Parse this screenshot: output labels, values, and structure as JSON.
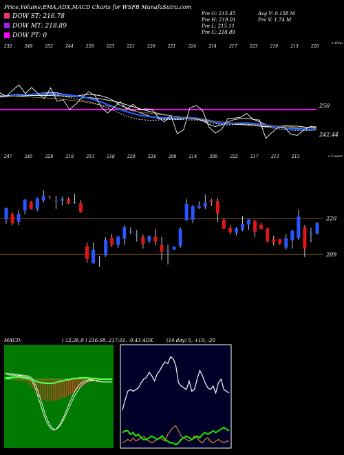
{
  "header": {
    "title": "Price,Volume,EMA,ADX,MACD Charts for WSFB MunafaSutra.com",
    "dow_st": "DOW ST: 216.78",
    "dow_mt": "DOW MT: 218.89",
    "dow_pt": "DOW PT: 0",
    "ohlc": {
      "open": "Pre  O: 215.45",
      "high": "Pre  H: 219.01",
      "low": "Pre  L: 215.11",
      "close": "Pre  C: 218.89"
    },
    "volume": {
      "avg": "Avg V: 0.158  M",
      "pre": "Pre  V: 1.74  M"
    },
    "colors": {
      "dow_st": "#e8327a",
      "dow_mt": "#a020f0",
      "dow_pt": "#ff00ff"
    }
  },
  "chart_data": [
    {
      "type": "line",
      "name": "ema-chart",
      "legend_tag": "< Ema",
      "top_labels": [
        "232",
        "249",
        "252",
        "244",
        "228",
        "223",
        "221",
        "226",
        "221",
        "224",
        "214",
        "217",
        "223",
        "219",
        "213",
        "220"
      ],
      "price_levels": [
        {
          "label": "250",
          "value": 250
        },
        {
          "label": "242.44",
          "value": 242.44
        }
      ],
      "ylim": [
        239,
        261
      ],
      "series": [
        {
          "color": "#ffffff",
          "values": [
            252.3,
            252.4,
            252.5,
            252.6,
            252.7,
            252.9,
            253.1,
            253.3,
            253.4,
            253.3,
            253.0,
            252.7,
            252.5,
            252.7,
            252.9,
            252.8,
            252.5,
            252.0,
            251.2,
            250.0,
            249.4,
            248.8,
            248.2,
            247.6,
            247.0,
            246.6,
            246.5,
            246.5,
            246.4,
            246.6,
            246.8,
            246.6,
            246.0,
            245.1,
            244.5,
            244.9,
            245.7,
            246.3,
            246.6,
            246.7,
            246.4,
            245.7,
            245.0,
            244.6,
            244.5,
            244.7,
            244.6,
            244.6,
            244.4,
            244.2,
            244.2
          ]
        },
        {
          "color": "#ffffff",
          "values": [
            252.2,
            252.3,
            252.4,
            252.4,
            252.5,
            252.6,
            252.6,
            252.6,
            252.6,
            252.5,
            252.5,
            252.4,
            252.3,
            252.2,
            252.1,
            251.9,
            251.7,
            251.4,
            251.1,
            250.7,
            250.2,
            249.7,
            249.2,
            248.7,
            248.3,
            247.9,
            247.6,
            247.3,
            247.0,
            246.8,
            246.6,
            246.4,
            246.2,
            245.9,
            245.6,
            245.4,
            245.2,
            245.1,
            245.0,
            244.9,
            244.8,
            244.6,
            244.5,
            244.4,
            244.3,
            244.2,
            244.1,
            244.0,
            243.9,
            243.8,
            243.7
          ]
        },
        {
          "color": "#2060ff",
          "values": [
            252.6,
            252.5,
            252.6,
            252.7,
            252.8,
            252.9,
            253.0,
            253.1,
            253.1,
            253.0,
            252.9,
            252.7,
            252.5,
            252.2,
            251.9,
            251.4,
            250.9,
            250.2,
            249.6,
            248.9,
            248.4,
            247.9,
            247.5,
            247.2,
            247.0,
            246.8,
            246.8,
            246.7,
            246.7,
            246.8,
            246.8,
            246.7,
            246.4,
            246.1,
            245.6,
            245.3,
            245.2,
            245.3,
            245.4,
            245.4,
            245.3,
            245.1,
            244.9,
            244.6,
            244.4,
            244.1,
            243.9,
            243.8,
            243.8,
            243.7,
            243.7
          ]
        },
        {
          "color": "#9a7a3a",
          "values": [
            252.6,
            252.5,
            252.4,
            252.3,
            252.3,
            252.2,
            252.1,
            252.0,
            251.9,
            251.8,
            251.6,
            251.4,
            251.2,
            251.0,
            250.7,
            250.4,
            250.1,
            249.8,
            249.5,
            249.2,
            248.9,
            248.6,
            248.3,
            248.1,
            247.9,
            247.7,
            247.5,
            247.3,
            247.1,
            246.9,
            246.7,
            246.5,
            246.3,
            246.1,
            245.9,
            245.7,
            245.5,
            245.4,
            245.2,
            245.1,
            245.0,
            244.9,
            244.8,
            244.7,
            244.6,
            244.5,
            244.4,
            244.3,
            244.2,
            244.1,
            244.0
          ]
        },
        {
          "color": "#ffffff",
          "dashed": true,
          "values": [
            252.2,
            252.5,
            252.8,
            252.8,
            252.6,
            252.6,
            252.6,
            252.8,
            252.9,
            252.7,
            252.4,
            252.1,
            251.7,
            251.4,
            251.0,
            250.6,
            250.0,
            249.4,
            248.6,
            247.9,
            247.2,
            246.7,
            246.3,
            246.2,
            246.1,
            246.2,
            246.3,
            246.3,
            246.3,
            246.3,
            246.2,
            246.2,
            246.0,
            245.6,
            245.3,
            245.0,
            244.9,
            245.0,
            245.1,
            245.1,
            244.9,
            244.6,
            244.3,
            244.1,
            243.9,
            243.7,
            243.5,
            243.4,
            243.4,
            243.4,
            243.6
          ]
        },
        {
          "color": "#ffffff",
          "values": [
            253.3,
            252.4,
            254.0,
            255.4,
            253.1,
            254.7,
            253.1,
            251.8,
            254.6,
            251.1,
            251.5,
            248.9,
            250.4,
            252.1,
            253.6,
            252.6,
            249.6,
            248.0,
            249.5,
            251.0,
            249.0,
            250.3,
            248.9,
            249.1,
            249.0,
            246.9,
            245.7,
            247.4,
            242.6,
            243.6,
            249.4,
            250.0,
            248.7,
            244.4,
            242.8,
            243.7,
            246.6,
            246.7,
            246.9,
            247.9,
            246.3,
            246.2,
            241.4,
            243.0,
            244.3,
            244.2,
            242.4,
            242.2,
            243.6,
            244.5,
            244.4
          ]
        }
      ]
    },
    {
      "type": "candlestick",
      "name": "price-chart",
      "legend_tag": "< Lower",
      "top_labels": [
        "247",
        "245",
        "228",
        "218",
        "213",
        "218",
        "220",
        "224",
        "208",
        "214",
        "209",
        "222",
        "217",
        "213",
        "213"
      ],
      "price_levels": [
        {
          "label": "220",
          "value": 220
        },
        {
          "label": "209",
          "value": 209
        }
      ],
      "ylim": [
        203,
        238
      ],
      "candles": [
        {
          "o": 219.6,
          "h": 223.1,
          "l": 218.3,
          "c": 223.1
        },
        {
          "o": 221.1,
          "h": 221.7,
          "l": 217.9,
          "c": 218.5
        },
        {
          "o": 218.9,
          "h": 222.4,
          "l": 217.9,
          "c": 221.3
        },
        {
          "o": 222.3,
          "h": 225.7,
          "l": 221.2,
          "c": 225.6
        },
        {
          "o": 224.9,
          "h": 225.2,
          "l": 222.6,
          "c": 222.8
        },
        {
          "o": 222.8,
          "h": 226.2,
          "l": 222.1,
          "c": 226.0
        },
        {
          "o": 225.4,
          "h": 228.4,
          "l": 224.8,
          "c": 226.7
        },
        {
          "o": 226.5,
          "h": 226.8,
          "l": 225.8,
          "c": 226.3
        },
        {
          "o": 225.3,
          "h": 226.7,
          "l": 222.8,
          "c": 225.3
        },
        {
          "o": 225.3,
          "h": 226.5,
          "l": 223.8,
          "c": 225.7
        },
        {
          "o": 225.7,
          "h": 226.2,
          "l": 224.3,
          "c": 224.6
        },
        {
          "o": 224.9,
          "h": 227.3,
          "l": 224.3,
          "c": 224.9
        },
        {
          "o": 224.5,
          "h": 225.4,
          "l": 221.6,
          "c": 221.8
        },
        {
          "o": 211.5,
          "h": 212.6,
          "l": 206.6,
          "c": 207.7
        },
        {
          "o": 206.4,
          "h": 212.6,
          "l": 206.2,
          "c": 210.5
        },
        {
          "o": 206.9,
          "h": 208.6,
          "l": 205.3,
          "c": 207.1
        },
        {
          "o": 208.8,
          "h": 214.2,
          "l": 208.3,
          "c": 213.5
        },
        {
          "o": 214.0,
          "h": 215.3,
          "l": 211.3,
          "c": 212.0
        },
        {
          "o": 211.9,
          "h": 214.5,
          "l": 210.9,
          "c": 214.5
        },
        {
          "o": 213.8,
          "h": 217.8,
          "l": 212.0,
          "c": 217.3
        },
        {
          "o": 215.9,
          "h": 217.2,
          "l": 215.2,
          "c": 216.0
        },
        {
          "o": 215.2,
          "h": 216.4,
          "l": 212.9,
          "c": 215.2
        },
        {
          "o": 214.3,
          "h": 215.0,
          "l": 210.8,
          "c": 212.2
        },
        {
          "o": 213.1,
          "h": 214.8,
          "l": 212.4,
          "c": 214.5
        },
        {
          "o": 214.4,
          "h": 216.7,
          "l": 211.9,
          "c": 212.9
        },
        {
          "o": 211.9,
          "h": 214.3,
          "l": 207.3,
          "c": 209.9
        },
        {
          "o": 209.9,
          "h": 212.0,
          "l": 206.0,
          "c": 210.2
        },
        {
          "o": 210.5,
          "h": 211.4,
          "l": 210.4,
          "c": 211.4
        },
        {
          "o": 211.6,
          "h": 217.2,
          "l": 211.0,
          "c": 216.7
        },
        {
          "o": 219.4,
          "h": 225.7,
          "l": 219.2,
          "c": 224.3
        },
        {
          "o": 219.5,
          "h": 224.0,
          "l": 218.5,
          "c": 223.6
        },
        {
          "o": 223.1,
          "h": 225.1,
          "l": 222.8,
          "c": 223.7
        },
        {
          "o": 223.5,
          "h": 227.1,
          "l": 222.8,
          "c": 224.6
        },
        {
          "o": 225.3,
          "h": 225.8,
          "l": 223.7,
          "c": 224.8
        },
        {
          "o": 225.1,
          "h": 226.0,
          "l": 218.8,
          "c": 221.4
        },
        {
          "o": 219.5,
          "h": 219.9,
          "l": 216.7,
          "c": 216.8
        },
        {
          "o": 217.0,
          "h": 217.9,
          "l": 215.1,
          "c": 215.7
        },
        {
          "o": 215.6,
          "h": 217.3,
          "l": 214.8,
          "c": 216.9
        },
        {
          "o": 216.6,
          "h": 220.6,
          "l": 216.1,
          "c": 218.2
        },
        {
          "o": 218.1,
          "h": 219.6,
          "l": 216.5,
          "c": 219.6
        },
        {
          "o": 219.2,
          "h": 219.5,
          "l": 214.2,
          "c": 215.8
        },
        {
          "o": 218.0,
          "h": 218.5,
          "l": 216.7,
          "c": 216.7
        },
        {
          "o": 216.9,
          "h": 217.1,
          "l": 212.7,
          "c": 213.0
        },
        {
          "o": 213.6,
          "h": 214.7,
          "l": 211.7,
          "c": 212.7
        },
        {
          "o": 213.6,
          "h": 213.7,
          "l": 212.0,
          "c": 212.2
        },
        {
          "o": 211.1,
          "h": 215.1,
          "l": 210.5,
          "c": 213.9
        },
        {
          "o": 213.3,
          "h": 216.4,
          "l": 210.8,
          "c": 216.2
        },
        {
          "o": 214.0,
          "h": 222.5,
          "l": 213.4,
          "c": 220.5
        },
        {
          "o": 217.2,
          "h": 217.9,
          "l": 208.2,
          "c": 210.8
        },
        {
          "o": 215.2,
          "h": 217.1,
          "l": 212.7,
          "c": 215.5
        },
        {
          "o": 215.4,
          "h": 218.8,
          "l": 215.0,
          "c": 218.5
        }
      ]
    },
    {
      "type": "macd",
      "name": "macd-chart",
      "header": "MACD:",
      "header_values": "( 12,26,9 ) 216.58,  217.01,  -0.43 ADX",
      "ylim": [
        -10,
        5
      ],
      "series": [
        {
          "color": "#ffffff",
          "values": [
            0.8,
            0.7,
            0.6,
            0.6,
            0.6,
            0.5,
            0.5,
            0.5,
            0.4,
            0.3,
            0.3,
            0.2,
            -0.2,
            -0.8,
            -1.6,
            -2.6,
            -3.6,
            -4.6,
            -5.5,
            -6.3,
            -6.8,
            -7.2,
            -7.4,
            -7.3,
            -7.0,
            -6.5,
            -5.9,
            -5.3,
            -4.5,
            -3.7,
            -3.0,
            -2.3,
            -1.7,
            -1.2,
            -0.8,
            -0.5,
            -0.3,
            -0.2,
            -0.1,
            -0.1,
            -0.1,
            -0.2,
            -0.2,
            -0.3,
            -0.4,
            -0.4,
            -0.4,
            -0.4,
            -0.4,
            -0.4
          ]
        },
        {
          "color": "#ffffff",
          "values": [
            0.9,
            0.8,
            0.8,
            0.8,
            0.7,
            0.7,
            0.6,
            0.6,
            0.6,
            0.5,
            0.5,
            0.4,
            0.2,
            -0.3,
            -1.0,
            -1.8,
            -2.8,
            -3.8,
            -4.8,
            -5.7,
            -6.4,
            -6.9,
            -7.2,
            -7.3,
            -7.1,
            -6.8,
            -6.3,
            -5.7,
            -5.0,
            -4.3,
            -3.6,
            -2.9,
            -2.3,
            -1.8,
            -1.3,
            -0.9,
            -0.6,
            -0.4,
            -0.3,
            -0.2,
            -0.2,
            -0.2,
            -0.3,
            -0.3,
            -0.4,
            -0.4,
            -0.4,
            -0.4,
            -0.4,
            -0.4
          ]
        },
        {
          "color": "#5aff4a",
          "values": [
            0.2,
            0.2,
            0.2,
            0.3,
            0.3,
            0.3,
            0.3,
            0.3,
            0.2,
            0.2,
            0.1,
            0.0,
            -0.1,
            -0.2,
            -0.3,
            -0.4,
            -0.5,
            -0.5,
            -0.6,
            -0.6,
            -0.6,
            -0.6,
            -0.6,
            -0.5,
            -0.4,
            -0.3,
            -0.3,
            -0.2,
            -0.1,
            -0.1,
            0.0,
            0.1,
            0.1,
            0.1,
            0.2,
            0.2,
            0.2,
            0.2,
            0.2,
            0.1,
            0.1,
            0.1,
            0.1,
            0.0,
            0.0,
            0.0,
            0.0,
            0.0,
            0.0,
            0.0
          ]
        }
      ],
      "histogram": [
        0.2,
        0.2,
        0.1,
        0.0,
        -0.1,
        -0.2,
        -0.2,
        -0.3,
        -0.3,
        -0.4,
        -0.6,
        -0.9,
        -1.3,
        -1.7,
        -2.1,
        -2.6,
        -2.9,
        -3.0,
        -3.1,
        -3.2,
        -3.2,
        -3.2,
        -3.2,
        -3.1,
        -3.0,
        -2.9,
        -2.8,
        -2.7,
        -2.6,
        -2.4,
        -2.2,
        -2.0,
        -1.8,
        -1.6,
        -1.4,
        -1.2,
        -1.0,
        -0.8,
        -0.6,
        -0.5,
        -0.4,
        -0.3,
        -0.2,
        -0.2,
        -0.1,
        -0.1,
        -0.1,
        -0.1,
        -0.1,
        -0.1
      ]
    },
    {
      "type": "adx",
      "name": "adx-chart",
      "header_values": "(14  day) 5,  +19,  -20",
      "ylim": [
        0,
        60
      ],
      "series": [
        {
          "color": "#ffffff",
          "values": [
            22,
            28,
            33,
            34,
            33,
            34,
            35,
            38,
            40,
            41,
            44,
            42,
            39,
            43,
            45,
            48,
            50,
            49,
            53,
            52,
            48,
            38,
            36,
            35,
            34,
            39,
            33,
            34,
            40,
            45,
            42,
            38,
            35,
            34,
            36,
            32,
            38,
            40,
            34,
            33,
            32
          ]
        },
        {
          "color": "#d88a20",
          "values": [
            3,
            4,
            5,
            4,
            6,
            4,
            5,
            6,
            7,
            5,
            4,
            3,
            4,
            5,
            6,
            5,
            4,
            8,
            10,
            12,
            13,
            10,
            7,
            6,
            5,
            4,
            5,
            7,
            6,
            4,
            3,
            5,
            6,
            4,
            3,
            4,
            5,
            4,
            3,
            4,
            4
          ]
        },
        {
          "color": "#20e000",
          "values": [
            9,
            10,
            10,
            8,
            9,
            7,
            8,
            6,
            5,
            5,
            6,
            7,
            6,
            5,
            6,
            7,
            5,
            4,
            3,
            3,
            2,
            3,
            5,
            6,
            7,
            6,
            5,
            6,
            7,
            6,
            8,
            9,
            8,
            9,
            10,
            9,
            10,
            11,
            12,
            11,
            10
          ]
        }
      ]
    }
  ]
}
